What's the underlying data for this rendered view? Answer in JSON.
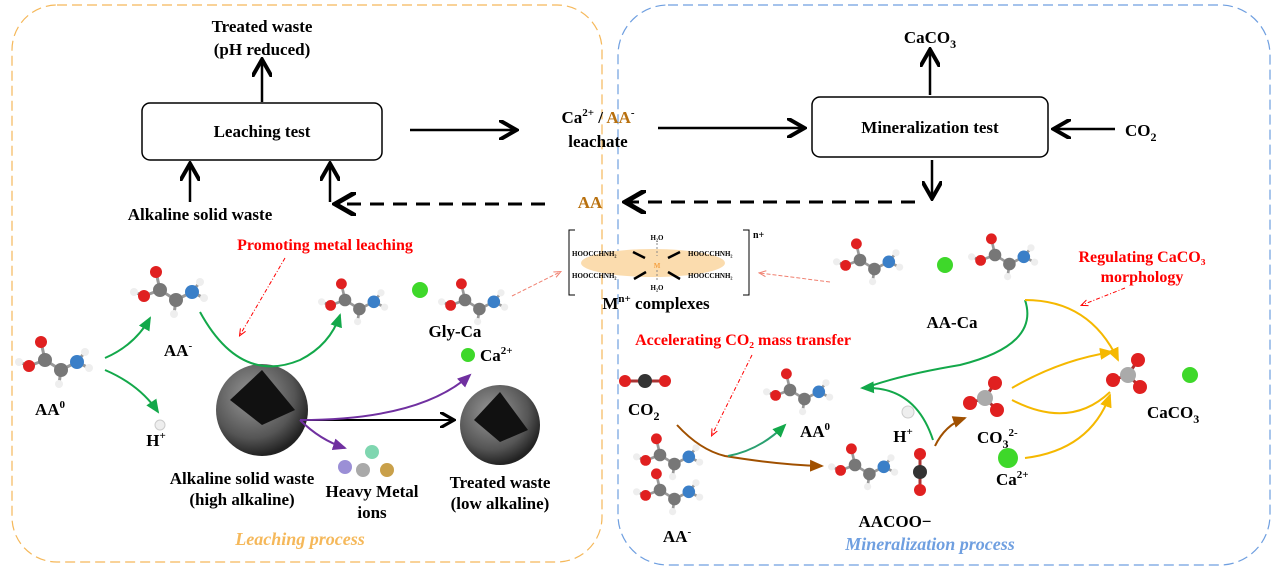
{
  "colors": {
    "leaching": "#f5b85a",
    "mineralization": "#6f9fe0",
    "annotation": "#ff0000",
    "aa_brown": "#b8700e",
    "green_arrow": "#13a84a",
    "purple_arrow": "#7030a0",
    "orange_arrow": "#f5b800",
    "brown_arrow": "#a05000"
  },
  "flow": {
    "treated_waste_top": [
      "Treated waste",
      "(pH reduced)"
    ],
    "leaching_test": "Leaching test",
    "alkaline_solid_waste": "Alkaline solid waste",
    "leachate_ca": "Ca",
    "leachate_ca_sup": "2+",
    "leachate_sep": " / ",
    "leachate_aa": "AA",
    "leachate_aa_sup": "-",
    "leachate": "leachate",
    "mineralization_test": "Mineralization test",
    "caco3_top": "CaCO",
    "caco3_sub": "3",
    "co2": "CO",
    "co2_sub": "2",
    "aa_return": "AA"
  },
  "leaching": {
    "annotation": "Promoting metal leaching",
    "aa0": "AA",
    "aa0_sup": "0",
    "aa_minus": "AA",
    "aa_minus_sup": "-",
    "h_plus": "H",
    "h_plus_sup": "+",
    "gly_ca": "Gly-Ca",
    "ca": "Ca",
    "ca_sup": "2+",
    "alkaline_waste": [
      "Alkaline  solid waste",
      "(high alkaline)"
    ],
    "heavy_metal": [
      "Heavy Metal",
      "ions"
    ],
    "treated_waste": [
      "Treated waste",
      "(low alkaline)"
    ],
    "process_label": "Leaching process"
  },
  "complex": {
    "ligands": [
      "HOOCCHNH₂",
      "HOOCCHNH₂",
      "HOOCCHNH₂",
      "HOOCCHNH₂"
    ],
    "water": [
      "H₂O",
      "H₂O"
    ],
    "metal": "M",
    "charge": "n+",
    "label": "M",
    "label_sup": "n+",
    "label_rest": " complexes"
  },
  "mineralization": {
    "annotation_morphology": [
      "Regulating CaCO₃",
      "morphology"
    ],
    "aa_ca": "AA-Ca",
    "annotation_mass_transfer": "Accelerating CO₂ mass transfer",
    "co2": "CO",
    "co2_sub": "2",
    "aa0": "AA",
    "aa0_sup": "0",
    "h_plus": "H",
    "h_plus_sup": "+",
    "co3": "CO",
    "co3_sub": "3",
    "co3_sup": "2-",
    "ca": "Ca",
    "ca_sup": "2+",
    "caco3": "CaCO",
    "caco3_sub": "3",
    "aacoo": "AACOO−",
    "aa_minus": "AA",
    "aa_minus_sup": "-",
    "process_label": "Mineralization process"
  }
}
